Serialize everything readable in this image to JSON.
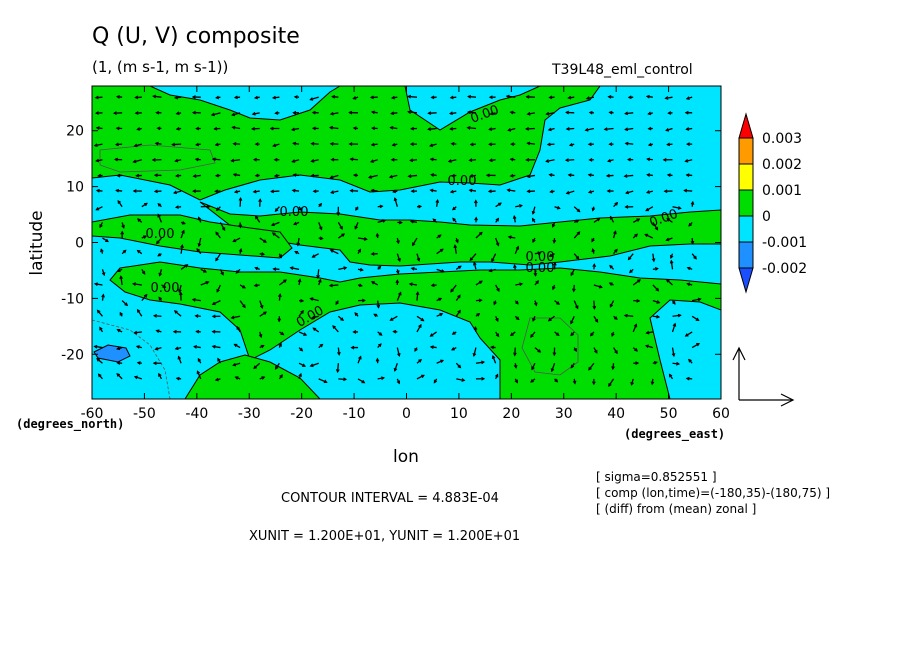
{
  "chart_data": {
    "type": "contour",
    "title": "Q (U, V) composite",
    "subtitle": "(1, (m s-1, m s-1))",
    "run_name": "T39L48_eml_control",
    "xlabel": "lon",
    "xunits": "(degrees_east)",
    "ylabel": "latitude",
    "yunits": "(degrees_north)",
    "xlim": [
      -60,
      60
    ],
    "ylim": [
      -28,
      28
    ],
    "x_ticks": [
      -60,
      -50,
      -40,
      -30,
      -20,
      -10,
      0,
      10,
      20,
      30,
      40,
      50,
      60
    ],
    "y_ticks": [
      -20,
      -10,
      0,
      10,
      20
    ],
    "colorbar": {
      "levels": [
        "0.003",
        "0.002",
        "0.001",
        "0",
        "-0.001",
        "-0.002"
      ],
      "colors": [
        "#ff0000",
        "#ff9a00",
        "#ffff00",
        "#00dd00",
        "#00e5ff",
        "#1e90ff",
        "#1a4fff"
      ]
    },
    "contour_labels": [
      "0.00",
      "0.00",
      "0.00",
      "0.00",
      "0.00",
      "0.00",
      "0.00",
      "0.00",
      "0.00"
    ],
    "contour_interval": "CONTOUR INTERVAL = 4.883E-04",
    "vector_units": "XUNIT = 1.200E+01, YUNIT = 1.200E+01",
    "notes": [
      "[ sigma=0.852551 ]",
      "[ comp (lon,time)=(-180,35)-(180,75) ]",
      "[ (diff) from (mean) zonal ]"
    ]
  }
}
